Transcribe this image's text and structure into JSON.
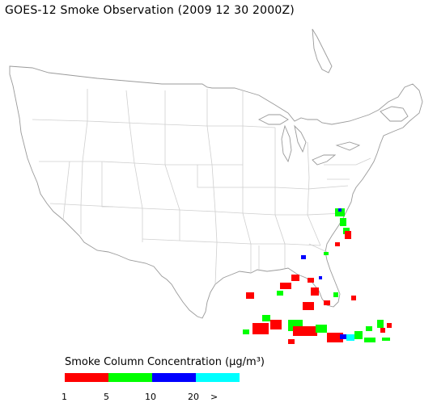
{
  "title": "GOES-12 Smoke Observation (2009 12 30  2000Z)",
  "legend": {
    "title": "Smoke Column Concentration (μg/m³)",
    "colors": [
      "#ff0000",
      "#00ff00",
      "#0000ff",
      "#00ffff"
    ],
    "ticks": [
      "1",
      "5",
      "10",
      "20",
      ">"
    ]
  }
}
